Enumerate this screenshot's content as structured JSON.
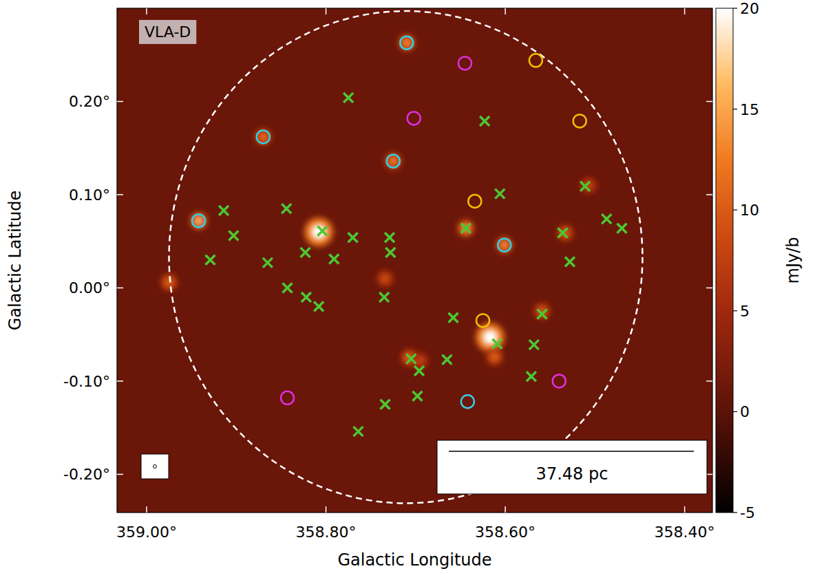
{
  "chart_data": {
    "type": "scatter",
    "x_label": "Galactic Longitude",
    "y_label": "Galactic Latitude",
    "annotations": {
      "panel_label": "VLA-D",
      "scale_bar": "37.48 pc"
    },
    "xlim": [
      359.033,
      358.369
    ],
    "ylim": [
      -0.241,
      0.3
    ],
    "xticks": [
      {
        "value": 359.0,
        "label": "359.00°"
      },
      {
        "value": 358.8,
        "label": "358.80°"
      },
      {
        "value": 358.6,
        "label": "358.60°"
      },
      {
        "value": 358.4,
        "label": "358.40°"
      }
    ],
    "yticks": [
      {
        "value": -0.2,
        "label": "-0.20°"
      },
      {
        "value": -0.1,
        "label": "-0.10°"
      },
      {
        "value": 0.0,
        "label": "0.00°"
      },
      {
        "value": 0.1,
        "label": "0.10°"
      },
      {
        "value": 0.2,
        "label": "0.20°"
      }
    ],
    "colorbar": {
      "label": "mJy/b",
      "range": [
        -5,
        20
      ],
      "ticks": [
        -5,
        0,
        5,
        10,
        15,
        20
      ]
    },
    "background_flux": 1,
    "region": {
      "x": 358.711,
      "y": 0.033,
      "radius": 0.264,
      "color": "#ffffff",
      "line_style": "dashed"
    },
    "emission": {
      "x": [
        358.808,
        358.617,
        358.644,
        358.71,
        358.87,
        358.725,
        358.942,
        358.601,
        358.707,
        358.559,
        358.533,
        358.507,
        358.975,
        358.734,
        358.612,
        358.695
      ],
      "y": [
        0.06,
        -0.053,
        0.064,
        0.263,
        0.162,
        0.136,
        0.072,
        0.046,
        -0.075,
        -0.025,
        0.059,
        0.11,
        0.006,
        0.01,
        -0.074,
        -0.078
      ],
      "flux": [
        20,
        20,
        16,
        15,
        13,
        14,
        18,
        15,
        12,
        11,
        11,
        9,
        12,
        10,
        12,
        9
      ]
    },
    "series": [
      {
        "color": "#33d0e6",
        "marker": "circle",
        "x": [
          358.71,
          358.87,
          358.725,
          358.942,
          358.601,
          358.642
        ],
        "values": [
          0.263,
          0.162,
          0.136,
          0.072,
          0.046,
          -0.122
        ]
      },
      {
        "color": "#e02ee0",
        "marker": "circle",
        "x": [
          358.645,
          358.702,
          358.843,
          358.54
        ],
        "values": [
          0.241,
          0.182,
          -0.118,
          -0.1
        ]
      },
      {
        "color": "#f0c000",
        "marker": "circle",
        "x": [
          358.566,
          358.517,
          358.634,
          358.625
        ],
        "values": [
          0.244,
          0.179,
          0.093,
          -0.035
        ]
      },
      {
        "color": "#4cc832",
        "marker": "x",
        "x": [
          358.775,
          358.623,
          358.914,
          358.844,
          358.606,
          358.511,
          358.903,
          358.929,
          358.865,
          358.823,
          358.804,
          358.77,
          358.791,
          358.729,
          358.728,
          358.735,
          358.644,
          358.487,
          358.47,
          358.536,
          358.528,
          358.843,
          358.822,
          358.808,
          358.658,
          358.559,
          358.609,
          358.568,
          358.705,
          358.696,
          358.665,
          358.698,
          358.734,
          358.764,
          358.571
        ],
        "values": [
          0.204,
          0.179,
          0.083,
          0.085,
          0.101,
          0.109,
          0.056,
          0.03,
          0.027,
          0.038,
          0.061,
          0.054,
          0.031,
          0.054,
          0.038,
          -0.01,
          0.064,
          0.074,
          0.064,
          0.059,
          0.028,
          0.0,
          -0.01,
          -0.02,
          -0.032,
          -0.028,
          -0.06,
          -0.061,
          -0.076,
          -0.089,
          -0.077,
          -0.116,
          -0.125,
          -0.154,
          -0.095
        ]
      }
    ]
  }
}
